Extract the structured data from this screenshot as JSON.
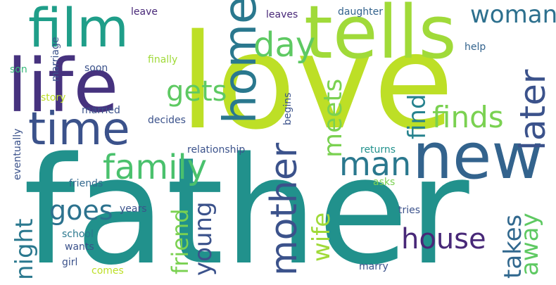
{
  "words": {
    "father": {
      "text": "father",
      "color": "#21918c"
    },
    "love": {
      "text": "love",
      "color": "#bddf26"
    },
    "life": {
      "text": "life",
      "color": "#46327e"
    },
    "film": {
      "text": "film",
      "color": "#1f9e89"
    },
    "tells": {
      "text": "tells",
      "color": "#a0da39"
    },
    "new": {
      "text": "new",
      "color": "#33638d"
    },
    "home": {
      "text": "home",
      "color": "#2a788e"
    },
    "time": {
      "text": "time",
      "color": "#3b528b"
    },
    "mother": {
      "text": "mother",
      "color": "#3b528b"
    },
    "family": {
      "text": "family",
      "color": "#4ac16d"
    },
    "man": {
      "text": "man",
      "color": "#2a788e"
    },
    "later": {
      "text": "later",
      "color": "#3b528b"
    },
    "woman": {
      "text": "woman",
      "color": "#2d708e"
    },
    "day": {
      "text": "day",
      "color": "#5ec962"
    },
    "finds": {
      "text": "finds",
      "color": "#7ad151"
    },
    "gets": {
      "text": "gets",
      "color": "#5ec962"
    },
    "meets": {
      "text": "meets",
      "color": "#7ad151"
    },
    "find": {
      "text": "find",
      "color": "#26828e"
    },
    "house": {
      "text": "house",
      "color": "#482878"
    },
    "goes": {
      "text": "goes",
      "color": "#2c728e"
    },
    "takes": {
      "text": "takes",
      "color": "#31688e"
    },
    "away": {
      "text": "away",
      "color": "#5ec962"
    },
    "night": {
      "text": "night",
      "color": "#2a788e"
    },
    "young": {
      "text": "young",
      "color": "#3b528b"
    },
    "friend": {
      "text": "friend",
      "color": "#7ad151"
    },
    "wife": {
      "text": "wife",
      "color": "#a0da39"
    },
    "leave": {
      "text": "leave",
      "color": "#482878"
    },
    "leaves": {
      "text": "leaves",
      "color": "#482878"
    },
    "daughter": {
      "text": "daughter",
      "color": "#33638d"
    },
    "help": {
      "text": "help",
      "color": "#33638d"
    },
    "marriage": {
      "text": "marriage",
      "color": "#3b528b"
    },
    "son": {
      "text": "son",
      "color": "#35b779"
    },
    "soon": {
      "text": "soon",
      "color": "#3b528b"
    },
    "finally": {
      "text": "finally",
      "color": "#a0da39"
    },
    "story": {
      "text": "story",
      "color": "#bddf26"
    },
    "married": {
      "text": "married",
      "color": "#3b528b"
    },
    "decides": {
      "text": "decides",
      "color": "#3b528b"
    },
    "eventually": {
      "text": "eventually",
      "color": "#3b528b"
    },
    "begins": {
      "text": "begins",
      "color": "#3b528b"
    },
    "relationship": {
      "text": "relationship",
      "color": "#3b528b"
    },
    "returns": {
      "text": "returns",
      "color": "#21918c"
    },
    "friends": {
      "text": "friends",
      "color": "#31688e"
    },
    "asks": {
      "text": "asks",
      "color": "#7ad151"
    },
    "years": {
      "text": "years",
      "color": "#3b528b"
    },
    "tries": {
      "text": "tries",
      "color": "#3b528b"
    },
    "school": {
      "text": "school",
      "color": "#2a788e"
    },
    "wants": {
      "text": "wants",
      "color": "#3b528b"
    },
    "girl": {
      "text": "girl",
      "color": "#3b528b"
    },
    "comes": {
      "text": "comes",
      "color": "#bddf26"
    },
    "marry": {
      "text": "marry",
      "color": "#3b528b"
    }
  }
}
